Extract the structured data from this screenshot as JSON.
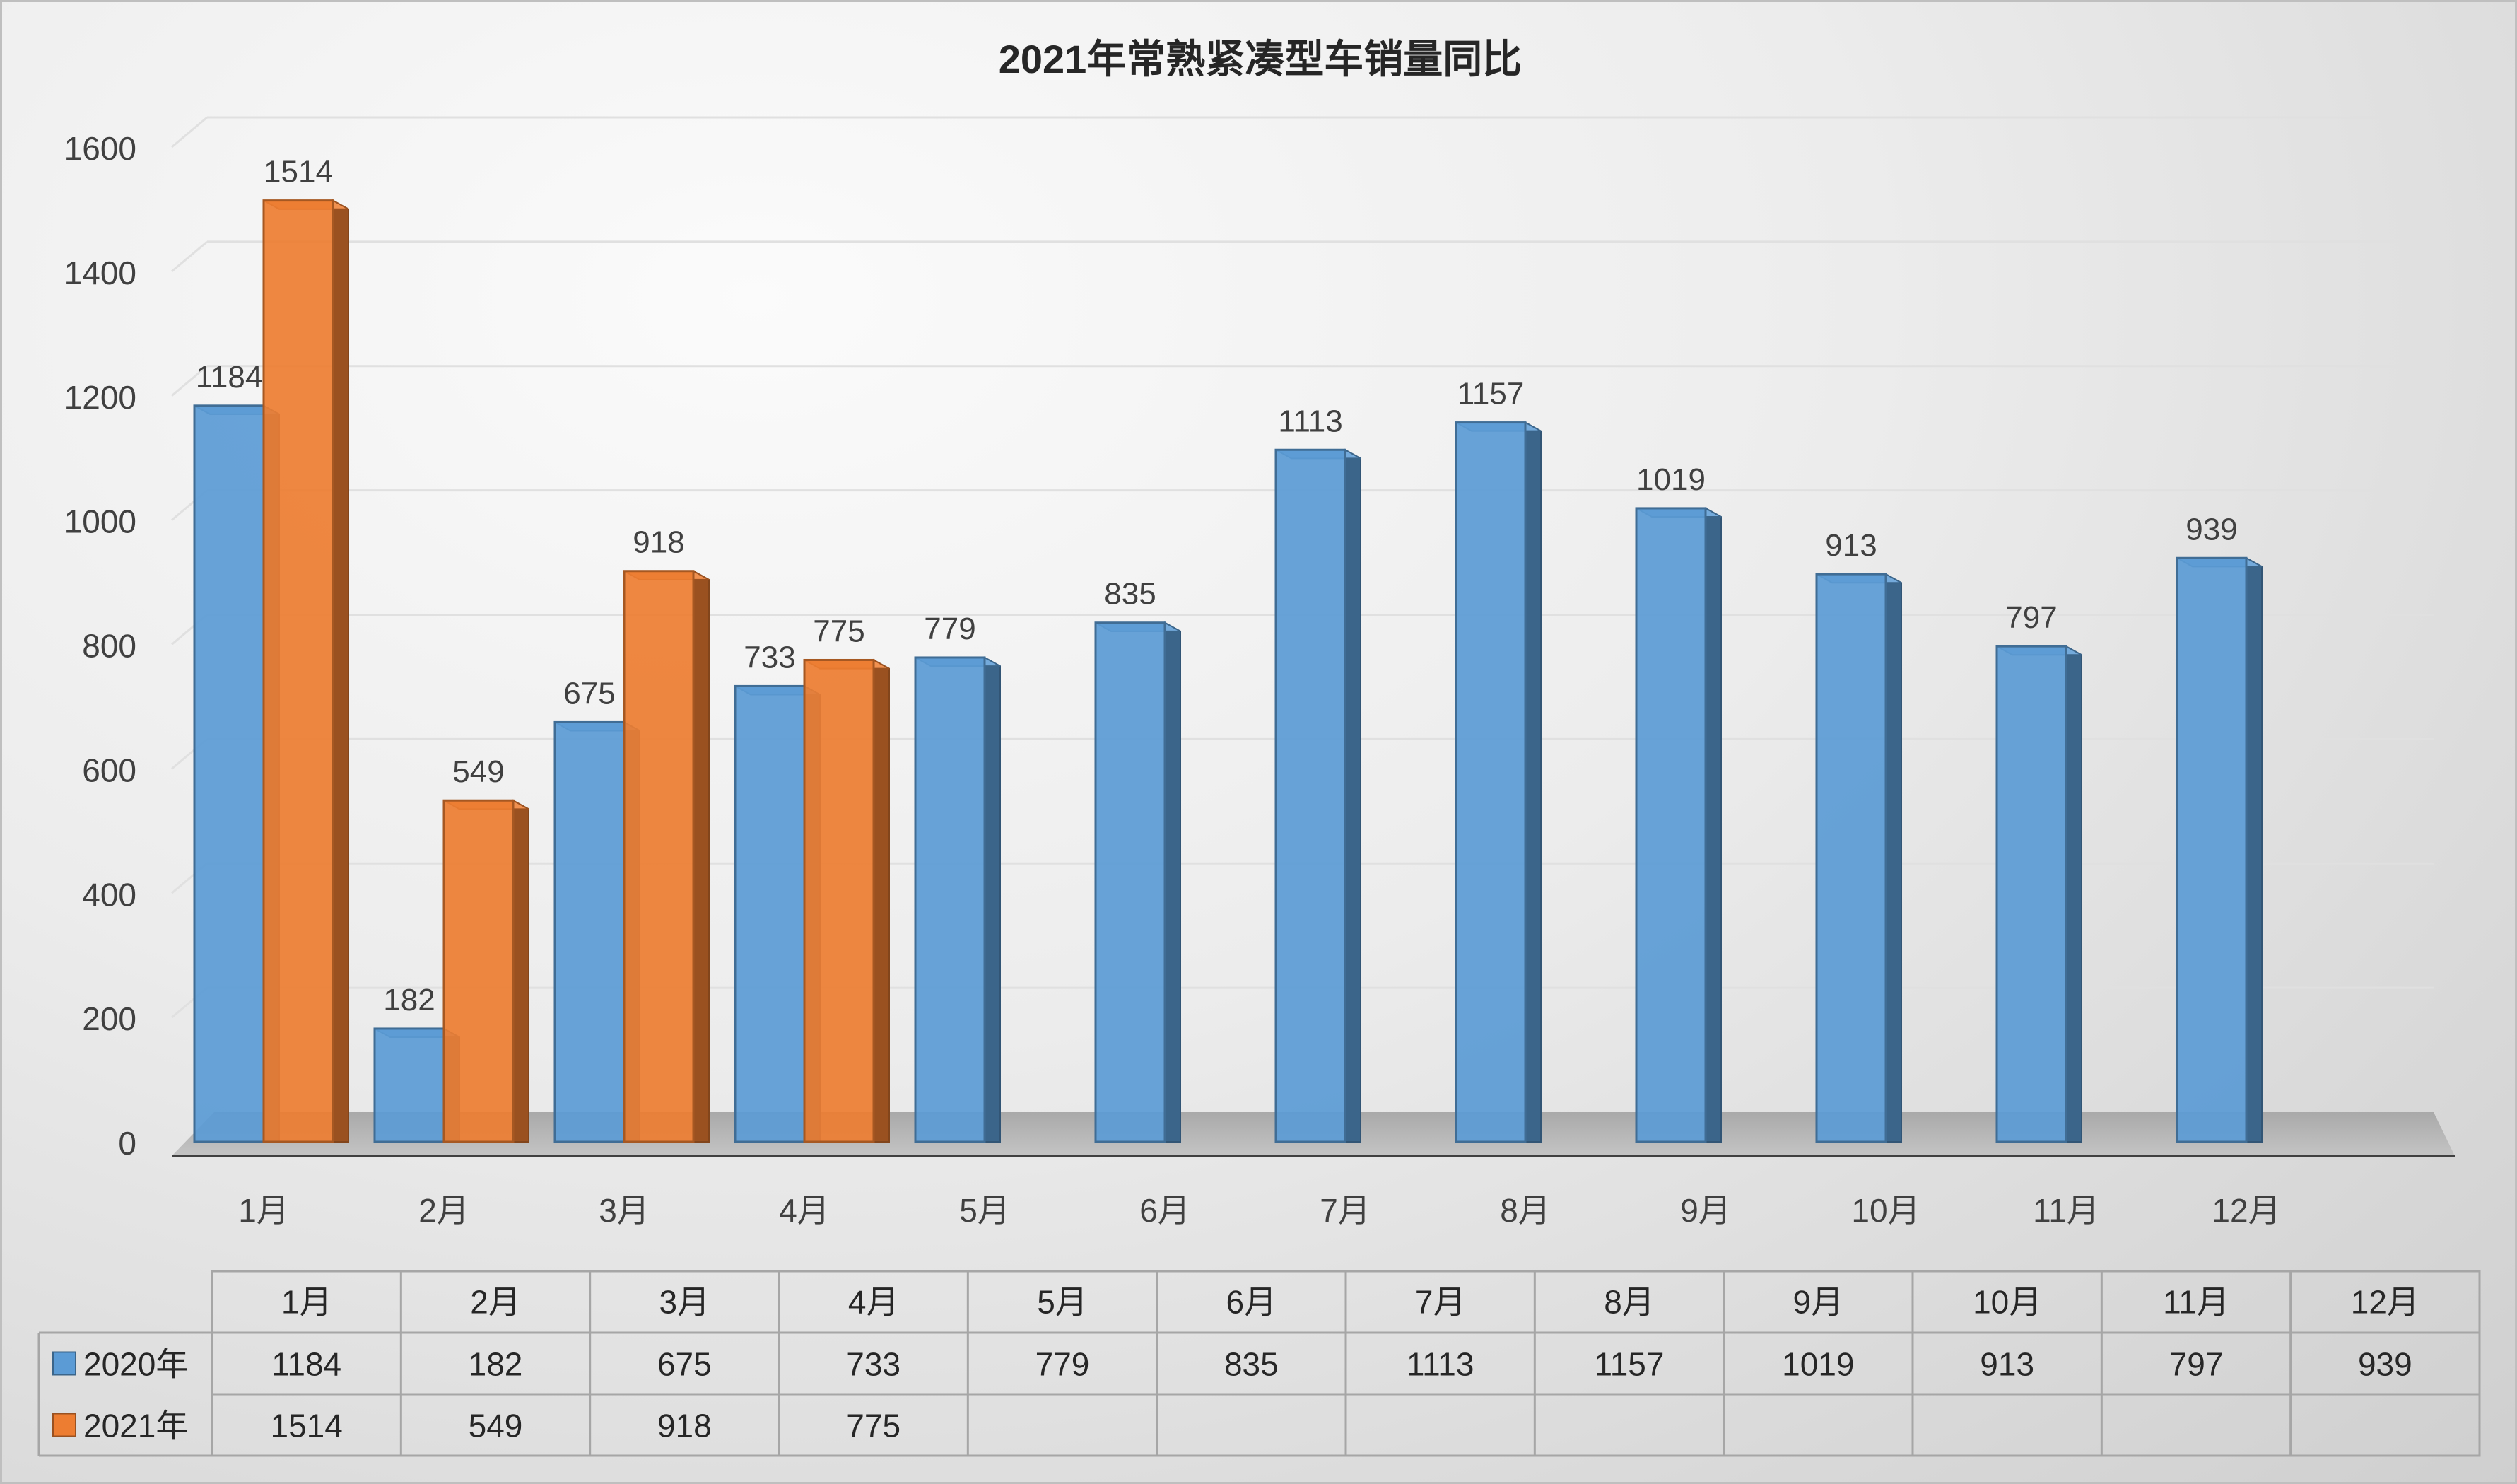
{
  "chart_data": {
    "type": "bar",
    "title": "2021年常熟紧凑型车销量同比",
    "categories": [
      "1月",
      "2月",
      "3月",
      "4月",
      "5月",
      "6月",
      "7月",
      "8月",
      "9月",
      "10月",
      "11月",
      "12月"
    ],
    "series": [
      {
        "name": "2020年",
        "color": "#5b9bd5",
        "values": [
          1184,
          182,
          675,
          733,
          779,
          835,
          1113,
          1157,
          1019,
          913,
          797,
          939
        ]
      },
      {
        "name": "2021年",
        "color": "#ed7d31",
        "values": [
          1514,
          549,
          918,
          775,
          null,
          null,
          null,
          null,
          null,
          null,
          null,
          null
        ]
      }
    ],
    "ylim": [
      0,
      1600
    ],
    "yticks": [
      "0",
      "200",
      "400",
      "600",
      "800",
      "1000",
      "1200",
      "1400",
      "1600"
    ],
    "grid": true,
    "legend": "data-table"
  }
}
